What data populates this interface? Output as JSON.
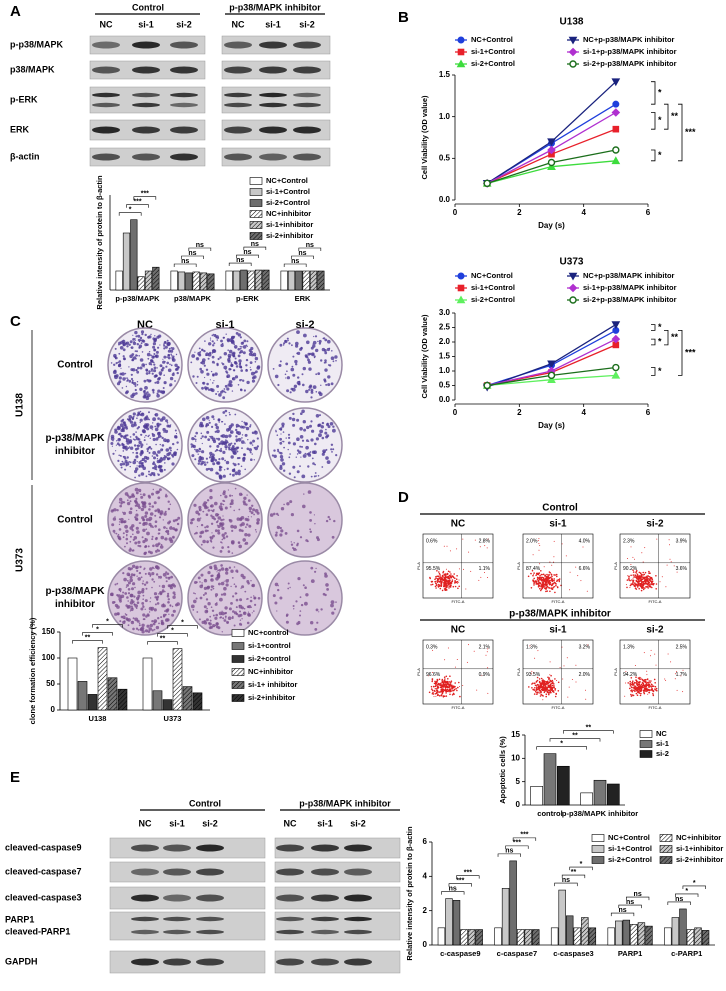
{
  "figure": {
    "panel_letters": [
      "A",
      "B",
      "C",
      "D",
      "E"
    ]
  },
  "blot_a": {
    "groups": [
      "Control",
      "p-p38/MAPK inhibitor"
    ],
    "lanes": [
      "NC",
      "si-1",
      "si-2",
      "NC",
      "si-1",
      "si-2"
    ],
    "rows": [
      "p-p38/MAPK",
      "p38/MAPK",
      "p-ERK",
      "ERK",
      "β-actin"
    ]
  },
  "colony": {
    "columns": [
      "NC",
      "si-1",
      "si-2"
    ],
    "cell_lines": [
      "U138",
      "U373"
    ],
    "rows": [
      [
        "Control"
      ],
      [
        "p-p38/MAPK",
        "inhibitor"
      ]
    ]
  },
  "flow": {
    "x_label": "FITC-A",
    "y_label": "PI-A",
    "groups": [
      {
        "title": "Control",
        "columns": [
          "NC",
          "si-1",
          "si-2"
        ],
        "quadrants": [
          [
            "0.6%",
            "2.8%",
            "95.5%",
            "1.1%"
          ],
          [
            "2.0%",
            "4.0%",
            "87.4%",
            "6.6%"
          ],
          [
            "2.3%",
            "3.9%",
            "90.2%",
            "3.6%"
          ]
        ]
      },
      {
        "title": "p-p38/MAPK inhibitor",
        "columns": [
          "NC",
          "si-1",
          "si-2"
        ],
        "quadrants": [
          [
            "0.3%",
            "2.1%",
            "96.6%",
            "0.9%"
          ],
          [
            "1.3%",
            "3.2%",
            "93.5%",
            "2.0%"
          ],
          [
            "1.3%",
            "2.5%",
            "94.2%",
            "1.7%"
          ]
        ]
      }
    ]
  },
  "blot_e": {
    "groups": [
      "Control",
      "p-p38/MAPK inhibitor"
    ],
    "lanes": [
      "NC",
      "si-1",
      "si-2",
      "NC",
      "si-1",
      "si-2"
    ],
    "rows": [
      "cleaved-caspase9",
      "cleaved-caspase7",
      "cleaved-caspase3",
      "PARP1",
      "cleaved-PARP1",
      "GAPDH"
    ]
  },
  "chart_data": [
    {
      "type": "bar",
      "y_label": "Relative intensity of protein to β-actin",
      "categories": [
        "p-p38/MAPK",
        "p38/MAPK",
        "p-ERK",
        "ERK"
      ],
      "ylim": [
        0,
        5
      ],
      "series": [
        {
          "name": "NC+Control",
          "color": "#ffffff",
          "hatch": false,
          "values": [
            1,
            1,
            1,
            1
          ]
        },
        {
          "name": "si-1+Control",
          "color": "#c8c8c8",
          "hatch": false,
          "values": [
            3.0,
            0.95,
            1.0,
            1.0
          ]
        },
        {
          "name": "si-2+Control",
          "color": "#6e6e6e",
          "hatch": false,
          "values": [
            3.7,
            0.9,
            1.05,
            1.0
          ]
        },
        {
          "name": "NC+inhibitor",
          "color": "#ffffff",
          "hatch": true,
          "values": [
            0.7,
            0.95,
            1.0,
            1.0
          ]
        },
        {
          "name": "si-1+inhibitor",
          "color": "#c8c8c8",
          "hatch": true,
          "values": [
            1.0,
            0.9,
            1.05,
            1.0
          ]
        },
        {
          "name": "si-2+inhibitor",
          "color": "#6e6e6e",
          "hatch": true,
          "values": [
            1.2,
            0.85,
            1.05,
            1.0
          ]
        }
      ],
      "annotations": [
        "*",
        "***",
        "***",
        "ns",
        "ns",
        "ns",
        "ns",
        "ns",
        "ns",
        "ns",
        "ns",
        "ns"
      ]
    },
    {
      "type": "line",
      "title": "U138",
      "x_label": "Day (s)",
      "y_label": "Cell Viability (OD value)",
      "x": [
        1,
        3,
        5
      ],
      "xlim": [
        0,
        6
      ],
      "xticks": [
        0,
        2,
        4,
        6
      ],
      "ylim": [
        0,
        1.5
      ],
      "yticks": [
        {
          "value": 0,
          "label": "0.0"
        },
        0.5,
        {
          "value": 1,
          "label": "1.0"
        },
        1.5
      ],
      "series": [
        {
          "name": "NC+Control",
          "color": "#1f3fdc",
          "marker": "circle",
          "values": [
            0.2,
            0.68,
            1.15
          ]
        },
        {
          "name": "si-1+Control",
          "color": "#e8202a",
          "marker": "square",
          "values": [
            0.2,
            0.55,
            0.85
          ]
        },
        {
          "name": "si-2+Control",
          "color": "#3ddc3d",
          "marker": "triangle",
          "values": [
            0.2,
            0.4,
            0.47
          ]
        },
        {
          "name": "NC+p-p38/MAPK inhibitor",
          "color": "#1a237e",
          "marker": "triangle-down",
          "values": [
            0.2,
            0.7,
            1.42
          ]
        },
        {
          "name": "si-1+p-p38/MAPK inhibitor",
          "color": "#b030d0",
          "marker": "diamond",
          "values": [
            0.2,
            0.6,
            1.05
          ]
        },
        {
          "name": "si-2+p-p38/MAPK inhibitor",
          "color": "#1b6e1b",
          "marker": "open-circle",
          "values": [
            0.2,
            0.45,
            0.6
          ]
        }
      ],
      "annotations": [
        "*",
        "*",
        "**",
        "*",
        "***"
      ]
    },
    {
      "type": "line",
      "title": "U373",
      "x_label": "Day (s)",
      "y_label": "Cell Viability (OD value)",
      "x": [
        1,
        3,
        5
      ],
      "xlim": [
        0,
        6
      ],
      "xticks": [
        0,
        2,
        4,
        6
      ],
      "ylim": [
        0,
        3
      ],
      "yticks": [
        {
          "value": 0,
          "label": "0.0"
        },
        0.5,
        {
          "value": 1,
          "label": "1.0"
        },
        1.5,
        {
          "value": 2,
          "label": "2.0"
        },
        2.5,
        {
          "value": 3,
          "label": "3.0"
        }
      ],
      "series": [
        {
          "name": "NC+Control",
          "color": "#1f3fdc",
          "marker": "circle",
          "values": [
            0.5,
            1.2,
            2.4
          ]
        },
        {
          "name": "si-1+Control",
          "color": "#e8202a",
          "marker": "square",
          "values": [
            0.5,
            0.95,
            1.9
          ]
        },
        {
          "name": "si-2+Control",
          "color": "#5ef05e",
          "marker": "triangle",
          "values": [
            0.5,
            0.7,
            0.85
          ]
        },
        {
          "name": "NC+p-p38/MAPK inhibitor",
          "color": "#1a237e",
          "marker": "triangle-down",
          "values": [
            0.45,
            1.25,
            2.6
          ]
        },
        {
          "name": "si-1+p-p38/MAPK inhibitor",
          "color": "#b030d0",
          "marker": "diamond",
          "values": [
            0.5,
            1.0,
            2.1
          ]
        },
        {
          "name": "si-2+p-p38/MAPK inhibitor",
          "color": "#1b6e1b",
          "marker": "open-circle",
          "values": [
            0.5,
            0.85,
            1.12
          ]
        }
      ],
      "annotations": [
        "*",
        "*",
        "**",
        "*",
        "***"
      ]
    },
    {
      "type": "bar",
      "y_label": "clone formation efficiency (%)",
      "categories": [
        "U138",
        "U373"
      ],
      "ylim": [
        0,
        150
      ],
      "yticks": [
        0,
        50,
        100,
        150
      ],
      "series": [
        {
          "name": "NC+control",
          "color": "#ffffff",
          "hatch": false,
          "values": [
            100,
            100
          ]
        },
        {
          "name": "si-1+control",
          "color": "#777777",
          "hatch": false,
          "values": [
            55,
            37
          ]
        },
        {
          "name": "si-2+control",
          "color": "#333333",
          "hatch": false,
          "values": [
            30,
            20
          ]
        },
        {
          "name": "NC+inhibitor",
          "color": "#ffffff",
          "hatch": true,
          "values": [
            120,
            118
          ]
        },
        {
          "name": "si-1+ inhibitor",
          "color": "#777777",
          "hatch": true,
          "values": [
            62,
            45
          ]
        },
        {
          "name": "si-2+inhibitor",
          "color": "#333333",
          "hatch": true,
          "values": [
            40,
            33
          ]
        }
      ],
      "annotations": [
        "**",
        "*",
        "*",
        "**",
        "*",
        "*"
      ]
    },
    {
      "type": "bar",
      "y_label": "Apoptotic cells (%)",
      "categories": [
        "control",
        "p-p38/MAPK inhibitor"
      ],
      "ylim": [
        0,
        15
      ],
      "yticks": [
        0,
        5,
        10,
        15
      ],
      "series": [
        {
          "name": "NC",
          "color": "#ffffff",
          "hatch": false,
          "values": [
            4,
            2.6
          ]
        },
        {
          "name": "si-1",
          "color": "#777777",
          "hatch": false,
          "values": [
            11,
            5.3
          ]
        },
        {
          "name": "si-2",
          "color": "#222222",
          "hatch": false,
          "values": [
            8.3,
            4.5
          ]
        }
      ],
      "annotations": [
        "*",
        "**",
        "**"
      ]
    },
    {
      "type": "bar",
      "y_label": "Relative intensity of protein to β-actin",
      "categories": [
        "c-caspase9",
        "c-caspase7",
        "c-caspase3",
        "PARP1",
        "c-PARP1"
      ],
      "ylim": [
        0,
        6
      ],
      "yticks": [
        0,
        2,
        4,
        6
      ],
      "series": [
        {
          "name": "NC+Control",
          "color": "#ffffff",
          "hatch": false,
          "values": [
            1,
            1,
            1,
            1,
            1
          ]
        },
        {
          "name": "si-1+Control",
          "color": "#c8c8c8",
          "hatch": false,
          "values": [
            2.7,
            3.3,
            3.2,
            1.4,
            1.6
          ]
        },
        {
          "name": "si-2+Control",
          "color": "#6e6e6e",
          "hatch": false,
          "values": [
            2.6,
            4.9,
            1.7,
            1.45,
            2.1
          ]
        },
        {
          "name": "NC+inhibitor",
          "color": "#ffffff",
          "hatch": true,
          "values": [
            0.9,
            0.9,
            1.0,
            1.2,
            0.9
          ]
        },
        {
          "name": "si-1+inhibitor",
          "color": "#c8c8c8",
          "hatch": true,
          "values": [
            0.9,
            0.9,
            1.6,
            1.3,
            1.0
          ]
        },
        {
          "name": "si-2+inhibitor",
          "color": "#6e6e6e",
          "hatch": true,
          "values": [
            0.9,
            0.9,
            1.0,
            1.1,
            0.85
          ]
        }
      ],
      "annotations": [
        "ns",
        "***",
        "***",
        "ns",
        "***",
        "***",
        "ns",
        "**",
        "*",
        "ns",
        "ns",
        "ns",
        "ns",
        "*",
        "*"
      ]
    }
  ]
}
